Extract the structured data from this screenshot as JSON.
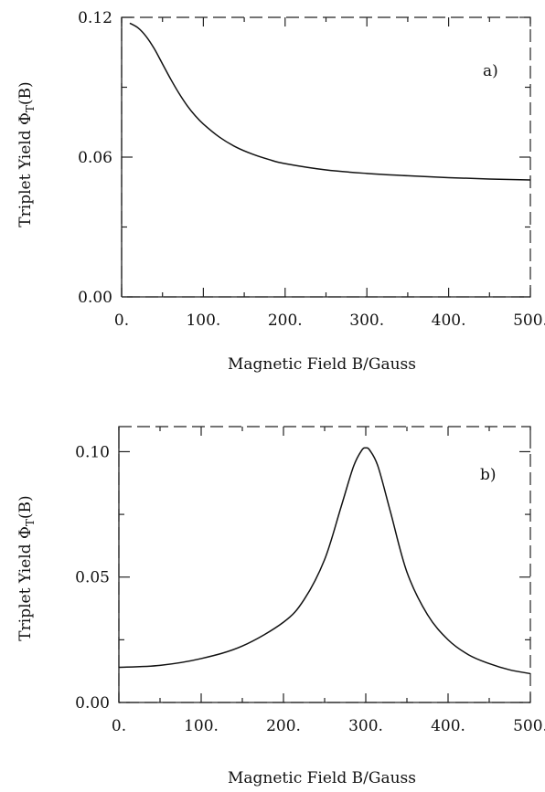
{
  "chart_data": [
    {
      "type": "line",
      "panel_label": "a)",
      "xlabel": "Magnetic Field B/Gauss",
      "ylabel": "Triplet Yield Φ",
      "ylabel_sub": "T",
      "ylabel_suffix": "(B)",
      "xlim": [
        0,
        500
      ],
      "ylim": [
        0,
        0.12
      ],
      "xticks": [
        {
          "value": 0,
          "label": "0."
        },
        {
          "value": 100,
          "label": "100."
        },
        {
          "value": 200,
          "label": "200."
        },
        {
          "value": 300,
          "label": "300."
        },
        {
          "value": 400,
          "label": "400."
        },
        {
          "value": 500,
          "label": "500."
        }
      ],
      "yticks": [
        {
          "value": 0,
          "label": "0.00"
        },
        {
          "value": 0.06,
          "label": "0.06"
        },
        {
          "value": 0.12,
          "label": "0.12"
        }
      ],
      "series": [
        {
          "x": [
            10,
            20,
            30,
            40,
            50,
            60,
            70,
            80,
            90,
            100,
            120,
            140,
            160,
            180,
            200,
            250,
            300,
            350,
            400,
            450,
            500
          ],
          "y": [
            0.1175,
            0.1155,
            0.1118,
            0.1065,
            0.1,
            0.0935,
            0.0875,
            0.0822,
            0.0778,
            0.0742,
            0.0685,
            0.0643,
            0.0613,
            0.059,
            0.0572,
            0.0545,
            0.053,
            0.052,
            0.0512,
            0.0506,
            0.0502
          ]
        }
      ]
    },
    {
      "type": "line",
      "panel_label": "b)",
      "xlabel": "Magnetic Field B/Gauss",
      "ylabel": "Triplet Yield Φ",
      "ylabel_sub": "T",
      "ylabel_suffix": "(B)",
      "xlim": [
        0,
        500
      ],
      "ylim": [
        0,
        0.11
      ],
      "xticks": [
        {
          "value": 0,
          "label": "0."
        },
        {
          "value": 100,
          "label": "100."
        },
        {
          "value": 200,
          "label": "200."
        },
        {
          "value": 300,
          "label": "300."
        },
        {
          "value": 400,
          "label": "400."
        },
        {
          "value": 500,
          "label": "500."
        }
      ],
      "yticks": [
        {
          "value": 0,
          "label": "0.00"
        },
        {
          "value": 0.05,
          "label": "0.05"
        },
        {
          "value": 0.1,
          "label": "0.10"
        }
      ],
      "series": [
        {
          "x": [
            0,
            50,
            100,
            150,
            200,
            225,
            250,
            270,
            285,
            295,
            300,
            305,
            315,
            330,
            350,
            375,
            400,
            425,
            450,
            475,
            500
          ],
          "y": [
            0.014,
            0.0148,
            0.0175,
            0.0225,
            0.032,
            0.041,
            0.057,
            0.078,
            0.094,
            0.1005,
            0.1015,
            0.1005,
            0.094,
            0.076,
            0.052,
            0.035,
            0.025,
            0.019,
            0.0155,
            0.013,
            0.0115
          ]
        }
      ]
    }
  ]
}
